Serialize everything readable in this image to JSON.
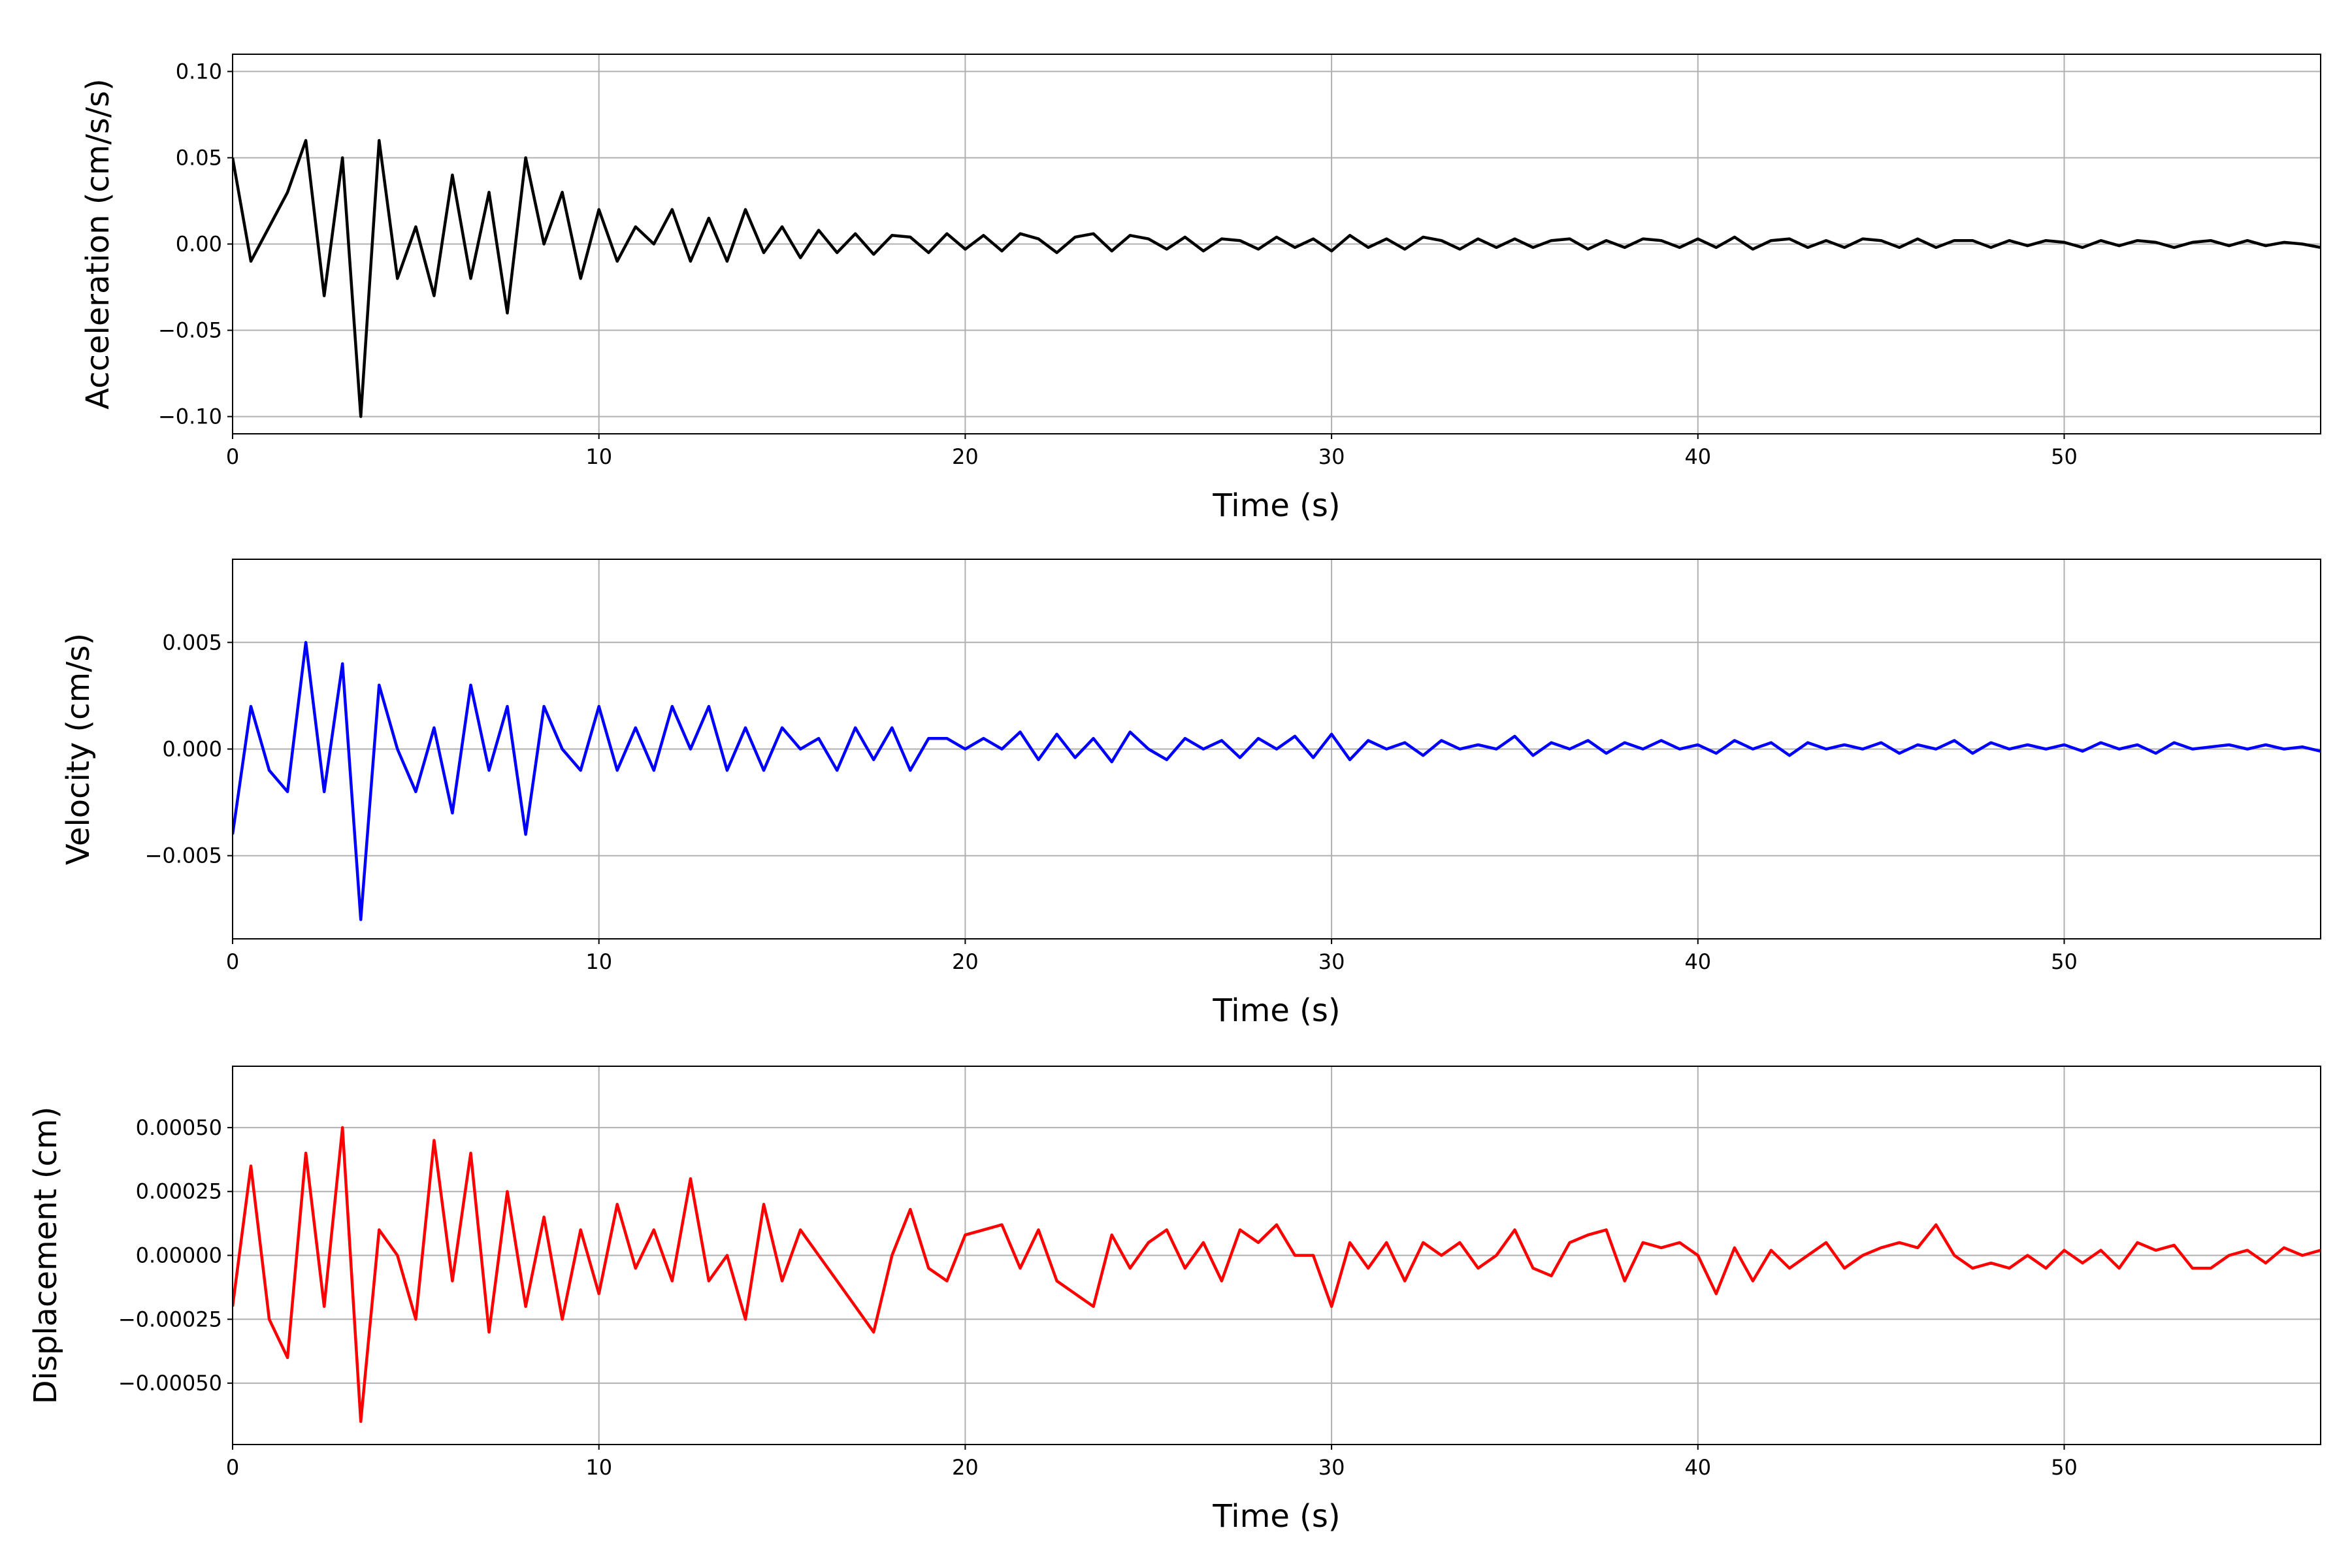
{
  "chart_data": [
    {
      "type": "line",
      "ylabel": "Acceleration (cm/s/s)",
      "xlabel": "Time (s)",
      "color": "#000000",
      "grid": true,
      "xlim": [
        0,
        57
      ],
      "xticks": [
        0,
        10,
        20,
        30,
        40,
        50
      ],
      "ylim": [
        -0.11,
        0.11
      ],
      "yticks": [
        {
          "value": -0.1,
          "label": "−0.10"
        },
        {
          "value": -0.05,
          "label": "−0.05"
        },
        {
          "value": 0,
          "label": "0.00"
        },
        {
          "value": 0.05,
          "label": "0.05"
        },
        {
          "value": 0.1,
          "label": "0.10"
        }
      ],
      "x": [
        0,
        0.5,
        1,
        1.5,
        2,
        2.5,
        3,
        3.5,
        4,
        4.5,
        5,
        5.5,
        6,
        6.5,
        7,
        7.5,
        8,
        8.5,
        9,
        9.5,
        10,
        10.5,
        11,
        11.5,
        12,
        12.5,
        13,
        13.5,
        14,
        14.5,
        15,
        15.5,
        16,
        16.5,
        17,
        17.5,
        18,
        18.5,
        19,
        19.5,
        20,
        20.5,
        21,
        21.5,
        22,
        22.5,
        23,
        23.5,
        24,
        24.5,
        25,
        25.5,
        26,
        26.5,
        27,
        27.5,
        28,
        28.5,
        29,
        29.5,
        30,
        30.5,
        31,
        31.5,
        32,
        32.5,
        33,
        33.5,
        34,
        34.5,
        35,
        35.5,
        36,
        36.5,
        37,
        37.5,
        38,
        38.5,
        39,
        39.5,
        40,
        40.5,
        41,
        41.5,
        42,
        42.5,
        43,
        43.5,
        44,
        44.5,
        45,
        45.5,
        46,
        46.5,
        47,
        47.5,
        48,
        48.5,
        49,
        49.5,
        50,
        50.5,
        51,
        51.5,
        52,
        52.5,
        53,
        53.5,
        54,
        54.5,
        55,
        55.5,
        56,
        56.5,
        57
      ],
      "values": [
        0.05,
        -0.01,
        0.01,
        0.03,
        0.06,
        -0.03,
        0.05,
        -0.1,
        0.06,
        -0.02,
        0.01,
        -0.03,
        0.04,
        -0.02,
        0.03,
        -0.04,
        0.05,
        0.0,
        0.03,
        -0.02,
        0.02,
        -0.01,
        0.01,
        0.0,
        0.02,
        -0.01,
        0.015,
        -0.01,
        0.02,
        -0.005,
        0.01,
        -0.008,
        0.008,
        -0.005,
        0.006,
        -0.006,
        0.005,
        0.004,
        -0.005,
        0.006,
        -0.003,
        0.005,
        -0.004,
        0.006,
        0.003,
        -0.005,
        0.004,
        0.006,
        -0.004,
        0.005,
        0.003,
        -0.003,
        0.004,
        -0.004,
        0.003,
        0.002,
        -0.003,
        0.004,
        -0.002,
        0.003,
        -0.004,
        0.005,
        -0.002,
        0.003,
        -0.003,
        0.004,
        0.002,
        -0.003,
        0.003,
        -0.002,
        0.003,
        -0.002,
        0.002,
        0.003,
        -0.003,
        0.002,
        -0.002,
        0.003,
        0.002,
        -0.002,
        0.003,
        -0.002,
        0.004,
        -0.003,
        0.002,
        0.003,
        -0.002,
        0.002,
        -0.002,
        0.003,
        0.002,
        -0.002,
        0.003,
        -0.002,
        0.002,
        0.002,
        -0.002,
        0.002,
        -0.001,
        0.002,
        0.001,
        -0.002,
        0.002,
        -0.001,
        0.002,
        0.001,
        -0.002,
        0.001,
        0.002,
        -0.001,
        0.002,
        -0.001,
        0.001,
        0.0,
        -0.002
      ]
    },
    {
      "type": "line",
      "ylabel": "Velocity (cm/s)",
      "xlabel": "Time (s)",
      "color": "#0000ff",
      "grid": true,
      "xlim": [
        0,
        57
      ],
      "xticks": [
        0,
        10,
        20,
        30,
        40,
        50
      ],
      "ylim": [
        -0.0089,
        0.0089
      ],
      "yticks": [
        {
          "value": -0.005,
          "label": "−0.005"
        },
        {
          "value": 0,
          "label": "0.000"
        },
        {
          "value": 0.005,
          "label": "0.005"
        }
      ],
      "x": [
        0,
        0.5,
        1,
        1.5,
        2,
        2.5,
        3,
        3.5,
        4,
        4.5,
        5,
        5.5,
        6,
        6.5,
        7,
        7.5,
        8,
        8.5,
        9,
        9.5,
        10,
        10.5,
        11,
        11.5,
        12,
        12.5,
        13,
        13.5,
        14,
        14.5,
        15,
        15.5,
        16,
        16.5,
        17,
        17.5,
        18,
        18.5,
        19,
        19.5,
        20,
        20.5,
        21,
        21.5,
        22,
        22.5,
        23,
        23.5,
        24,
        24.5,
        25,
        25.5,
        26,
        26.5,
        27,
        27.5,
        28,
        28.5,
        29,
        29.5,
        30,
        30.5,
        31,
        31.5,
        32,
        32.5,
        33,
        33.5,
        34,
        34.5,
        35,
        35.5,
        36,
        36.5,
        37,
        37.5,
        38,
        38.5,
        39,
        39.5,
        40,
        40.5,
        41,
        41.5,
        42,
        42.5,
        43,
        43.5,
        44,
        44.5,
        45,
        45.5,
        46,
        46.5,
        47,
        47.5,
        48,
        48.5,
        49,
        49.5,
        50,
        50.5,
        51,
        51.5,
        52,
        52.5,
        53,
        53.5,
        54,
        54.5,
        55,
        55.5,
        56,
        56.5,
        57
      ],
      "values": [
        -0.004,
        0.002,
        -0.001,
        -0.002,
        0.005,
        -0.002,
        0.004,
        -0.008,
        0.003,
        0.0,
        -0.002,
        0.001,
        -0.003,
        0.003,
        -0.001,
        0.002,
        -0.004,
        0.002,
        0.0,
        -0.001,
        0.002,
        -0.001,
        0.001,
        -0.001,
        0.002,
        0.0,
        0.002,
        -0.001,
        0.001,
        -0.001,
        0.001,
        0.0,
        0.0005,
        -0.001,
        0.001,
        -0.0005,
        0.001,
        -0.001,
        0.0005,
        0.0005,
        0.0,
        0.0005,
        0.0,
        0.0008,
        -0.0005,
        0.0007,
        -0.0004,
        0.0005,
        -0.0006,
        0.0008,
        0.0,
        -0.0005,
        0.0005,
        0.0,
        0.0004,
        -0.0004,
        0.0005,
        0.0,
        0.0006,
        -0.0004,
        0.0007,
        -0.0005,
        0.0004,
        0.0,
        0.0003,
        -0.0003,
        0.0004,
        0.0,
        0.0002,
        0.0,
        0.0006,
        -0.0003,
        0.0003,
        0.0,
        0.0004,
        -0.0002,
        0.0003,
        0.0,
        0.0004,
        0.0,
        0.0002,
        -0.0002,
        0.0004,
        0.0,
        0.0003,
        -0.0003,
        0.0003,
        0.0,
        0.0002,
        0.0,
        0.0003,
        -0.0002,
        0.0002,
        0.0,
        0.0004,
        -0.0002,
        0.0003,
        0.0,
        0.0002,
        0.0,
        0.0002,
        -0.0001,
        0.0003,
        0.0,
        0.0002,
        -0.0002,
        0.0003,
        0.0,
        0.0001,
        0.0002,
        0.0,
        0.0002,
        0.0,
        0.0001,
        -0.0001
      ]
    },
    {
      "type": "line",
      "ylabel": "Displacement (cm)",
      "xlabel": "Time (s)",
      "color": "#ff0000",
      "grid": true,
      "xlim": [
        0,
        57
      ],
      "xticks": [
        0,
        10,
        20,
        30,
        40,
        50
      ],
      "ylim": [
        -0.00074,
        0.00074
      ],
      "yticks": [
        {
          "value": -0.0005,
          "label": "−0.00050"
        },
        {
          "value": -0.00025,
          "label": "−0.00025"
        },
        {
          "value": 0,
          "label": "0.00000"
        },
        {
          "value": 0.00025,
          "label": "0.00025"
        },
        {
          "value": 0.0005,
          "label": "0.00050"
        }
      ],
      "x": [
        0,
        0.5,
        1,
        1.5,
        2,
        2.5,
        3,
        3.5,
        4,
        4.5,
        5,
        5.5,
        6,
        6.5,
        7,
        7.5,
        8,
        8.5,
        9,
        9.5,
        10,
        10.5,
        11,
        11.5,
        12,
        12.5,
        13,
        13.5,
        14,
        14.5,
        15,
        15.5,
        16,
        16.5,
        17,
        17.5,
        18,
        18.5,
        19,
        19.5,
        20,
        20.5,
        21,
        21.5,
        22,
        22.5,
        23,
        23.5,
        24,
        24.5,
        25,
        25.5,
        26,
        26.5,
        27,
        27.5,
        28,
        28.5,
        29,
        29.5,
        30,
        30.5,
        31,
        31.5,
        32,
        32.5,
        33,
        33.5,
        34,
        34.5,
        35,
        35.5,
        36,
        36.5,
        37,
        37.5,
        38,
        38.5,
        39,
        39.5,
        40,
        40.5,
        41,
        41.5,
        42,
        42.5,
        43,
        43.5,
        44,
        44.5,
        45,
        45.5,
        46,
        46.5,
        47,
        47.5,
        48,
        48.5,
        49,
        49.5,
        50,
        50.5,
        51,
        51.5,
        52,
        52.5,
        53,
        53.5,
        54,
        54.5,
        55,
        55.5,
        56,
        56.5,
        57
      ],
      "values": [
        -0.0002,
        0.00035,
        -0.00025,
        -0.0004,
        0.0004,
        -0.0002,
        0.0005,
        -0.00065,
        0.0001,
        0.0,
        -0.00025,
        0.00045,
        -0.0001,
        0.0004,
        -0.0003,
        0.00025,
        -0.0002,
        0.00015,
        -0.00025,
        0.0001,
        -0.00015,
        0.0002,
        -5e-05,
        0.0001,
        -0.0001,
        0.0003,
        -0.0001,
        0.0,
        -0.00025,
        0.0002,
        -0.0001,
        0.0001,
        0.0,
        -0.0001,
        -0.0002,
        -0.0003,
        0.0,
        0.00018,
        -5e-05,
        -0.0001,
        8e-05,
        0.0001,
        0.00012,
        -5e-05,
        0.0001,
        -0.0001,
        -0.00015,
        -0.0002,
        8e-05,
        -5e-05,
        5e-05,
        0.0001,
        -5e-05,
        5e-05,
        -0.0001,
        0.0001,
        5e-05,
        0.00012,
        0.0,
        0.0,
        -0.0002,
        5e-05,
        -5e-05,
        5e-05,
        -0.0001,
        5e-05,
        0.0,
        5e-05,
        -5e-05,
        0.0,
        0.0001,
        -5e-05,
        -8e-05,
        5e-05,
        8e-05,
        0.0001,
        -0.0001,
        5e-05,
        3e-05,
        5e-05,
        0.0,
        -0.00015,
        3e-05,
        -0.0001,
        2e-05,
        -5e-05,
        0.0,
        5e-05,
        -5e-05,
        0.0,
        3e-05,
        5e-05,
        3e-05,
        0.00012,
        0.0,
        -5e-05,
        -3e-05,
        -5e-05,
        0.0,
        -5e-05,
        2e-05,
        -3e-05,
        2e-05,
        -5e-05,
        5e-05,
        2e-05,
        4e-05,
        -5e-05,
        -5e-05,
        0.0,
        2e-05,
        -3e-05,
        3e-05,
        0.0,
        2e-05
      ]
    }
  ]
}
